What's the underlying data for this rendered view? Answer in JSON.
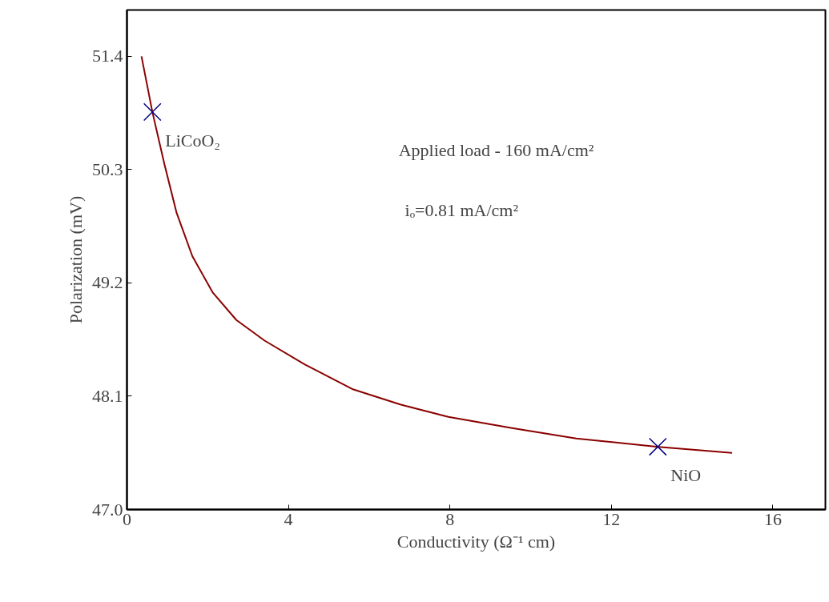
{
  "chart_data": {
    "type": "line",
    "xlabel": "Conductivity (Ω⁻¹ cm)",
    "ylabel": "Polarization (mV)",
    "xlim": [
      0,
      17.3
    ],
    "ylim": [
      47.0,
      51.85
    ],
    "xticks": [
      0,
      4,
      8,
      12,
      16
    ],
    "yticks": [
      {
        "value": 47.0,
        "label": "47.0"
      },
      48.1,
      49.2,
      50.3,
      51.4
    ],
    "grid": false,
    "series": [
      {
        "color": "#8b0000",
        "marker": "none",
        "x": [
          0.36,
          0.63,
          0.93,
          1.23,
          1.62,
          2.12,
          2.71,
          3.41,
          4.4,
          5.58,
          6.77,
          7.96,
          9.54,
          11.13,
          13.11,
          14.99
        ],
        "values": [
          51.4,
          50.86,
          50.35,
          49.88,
          49.46,
          49.11,
          48.84,
          48.64,
          48.41,
          48.17,
          48.02,
          47.9,
          47.79,
          47.69,
          47.61,
          47.55
        ]
      },
      {
        "type": "scatter",
        "color": "#000080",
        "marker": "cross",
        "x": [
          0.63,
          13.15
        ],
        "values": [
          50.86,
          47.61
        ]
      }
    ],
    "annotations": [
      {
        "text": "LiCoO₂",
        "x": 0.63,
        "y": 50.86
      },
      {
        "text": "NiO",
        "x": 13.15,
        "y": 47.61
      },
      "Applied load - 160 mA/cm²",
      "iₒ=0.81 mA/cm²"
    ]
  }
}
